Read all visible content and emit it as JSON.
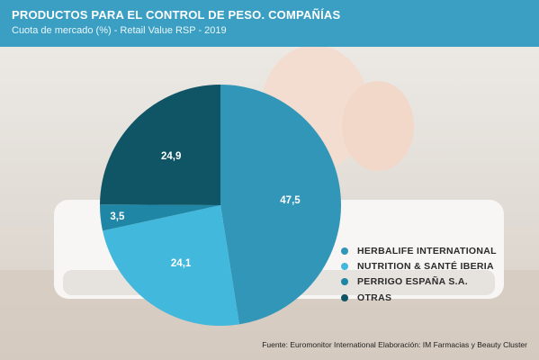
{
  "header": {
    "title": "PRODUCTOS PARA EL CONTROL DE PESO. COMPAÑÍAS",
    "subtitle": "Cuota de mercado (%) - Retail Value RSP - 2019"
  },
  "chart_data": {
    "type": "pie",
    "categories": [
      "HERBALIFE INTERNATIONAL",
      "NUTRITION & SANTÉ IBERIA",
      "PERRIGO ESPAÑA S.A.",
      "OTRAS"
    ],
    "values": [
      47.5,
      24.1,
      3.5,
      24.9
    ],
    "value_labels": [
      "47,5",
      "24,1",
      "3,5",
      "24,9"
    ],
    "colors": [
      "#3296b9",
      "#42b8dc",
      "#1f86a5",
      "#0f5566"
    ],
    "legend_position": "bottom-right"
  },
  "source": "Fuente: Euromonitor International Elaboración: IM Farmacias y Beauty Cluster"
}
